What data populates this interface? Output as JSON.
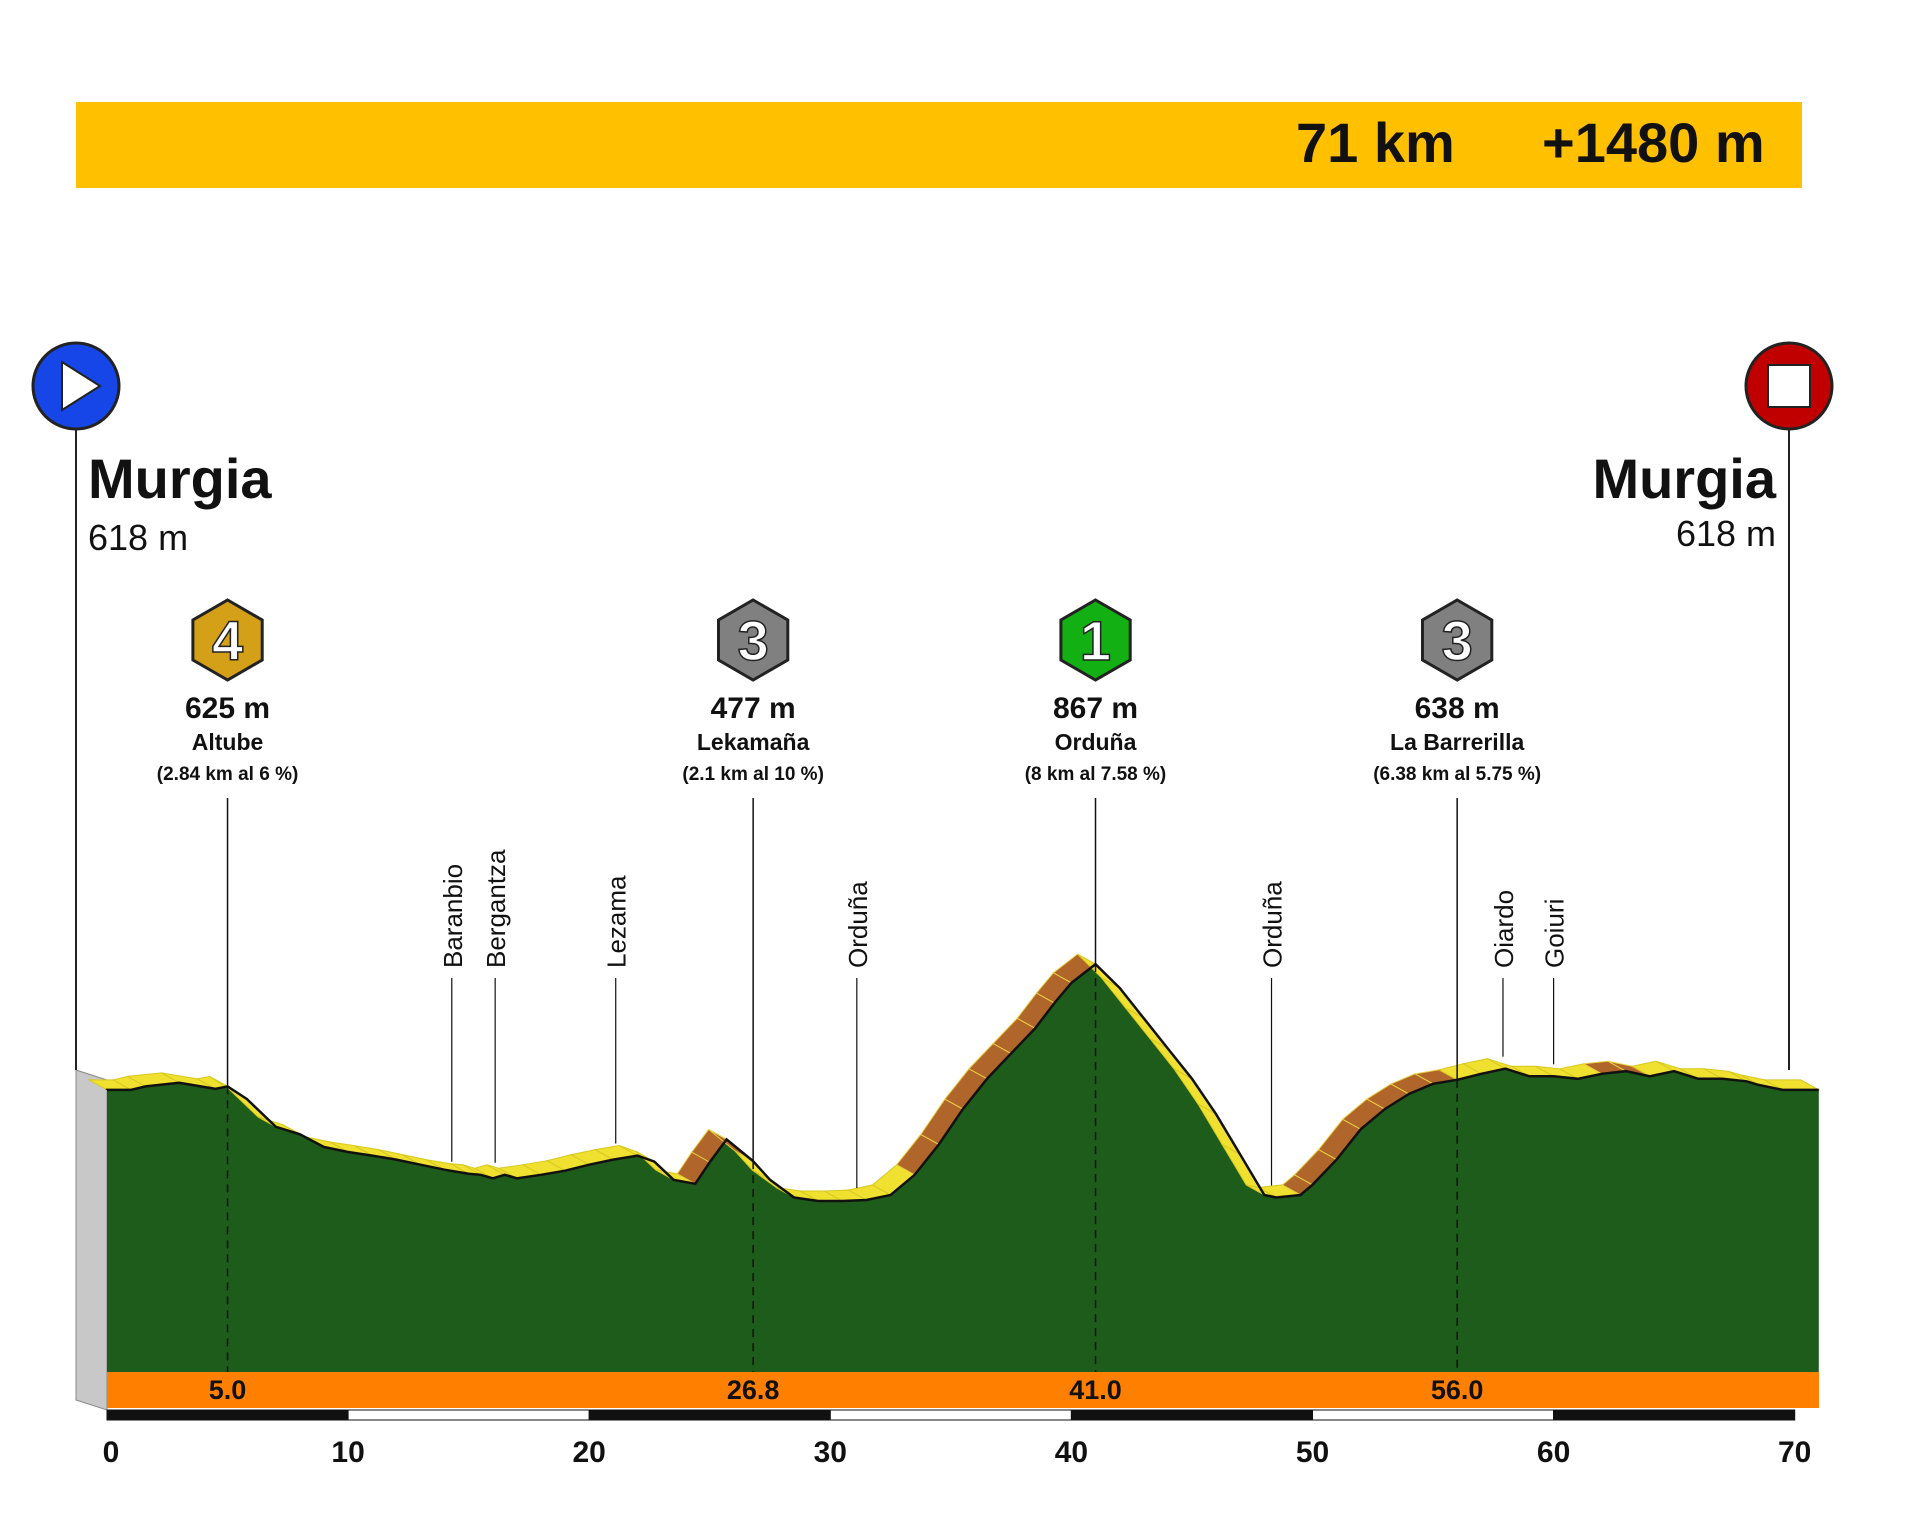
{
  "header": {
    "distance": "71 km",
    "elevation_gain": "+1480 m"
  },
  "chart_data": {
    "type": "area",
    "title": "",
    "xlabel": "",
    "ylabel": "",
    "xlim": [
      0,
      71
    ],
    "x_ticks": [
      "0",
      "10",
      "20",
      "30",
      "40",
      "50",
      "60",
      "70"
    ],
    "start": {
      "name": "Murgia",
      "elevation": "618 m",
      "icon": "play-icon",
      "color": "#1646E8"
    },
    "finish": {
      "name": "Murgia",
      "elevation": "618 m",
      "icon": "stop-icon",
      "color": "#C00000"
    },
    "series": [
      {
        "x": [
          0,
          1,
          1.6,
          3,
          4.5,
          5,
          5.8,
          7,
          8,
          9,
          10,
          11,
          12,
          13,
          14,
          15,
          15.5,
          16,
          16.5,
          17,
          18,
          19,
          20,
          21,
          22,
          22.7,
          23.5,
          24.4,
          25,
          25.7,
          26.8,
          27.5,
          28.5,
          29.5,
          30.5,
          31.5,
          32.5,
          33.5,
          34.5,
          35.5,
          36.5,
          37.5,
          38.5,
          39.3,
          40,
          41,
          42,
          43,
          44,
          45,
          46,
          47,
          48,
          48.5,
          49.5,
          50,
          51,
          52,
          53,
          54,
          55,
          56,
          57,
          58,
          59,
          60,
          61,
          62,
          63,
          64,
          65,
          66,
          67,
          68,
          68.5,
          69.5,
          71
        ],
        "y": [
          618,
          618,
          625,
          632,
          620,
          625,
          600,
          545,
          530,
          505,
          495,
          488,
          480,
          470,
          460,
          452,
          450,
          443,
          450,
          443,
          450,
          458,
          470,
          480,
          488,
          476,
          440,
          432,
          475,
          520,
          477,
          440,
          405,
          398,
          398,
          400,
          410,
          450,
          510,
          580,
          640,
          690,
          740,
          790,
          830,
          867,
          820,
          760,
          700,
          640,
          570,
          490,
          410,
          405,
          410,
          430,
          480,
          540,
          580,
          610,
          630,
          638,
          650,
          660,
          645,
          645,
          640,
          650,
          655,
          645,
          655,
          640,
          640,
          635,
          628,
          618,
          618
        ]
      }
    ],
    "climbs": [
      {
        "category": "4",
        "km": 5.0,
        "km_label": "5.0",
        "elevation": "625 m",
        "name": "Altube",
        "detail": "(2.84 km  al  6 %)",
        "color": "#D4A017"
      },
      {
        "category": "3",
        "km": 26.8,
        "km_label": "26.8",
        "elevation": "477 m",
        "name": "Lekamaña",
        "detail": "(2.1 km  al  10 %)",
        "color": "#808080"
      },
      {
        "category": "1",
        "km": 41.0,
        "km_label": "41.0",
        "elevation": "867 m",
        "name": "Orduña",
        "detail": "(8 km  al  7.58 %)",
        "color": "#13B013"
      },
      {
        "category": "3",
        "km": 56.0,
        "km_label": "56.0",
        "elevation": "638 m",
        "name": "La Barrerilla",
        "detail": "(6.38 km  al  5.75 %)",
        "color": "#808080"
      }
    ],
    "waypoints": [
      {
        "name": "Baranbio",
        "km": 14.3
      },
      {
        "name": "Bergantza",
        "km": 16.1
      },
      {
        "name": "Lezama",
        "km": 21.1
      },
      {
        "name": "Orduña",
        "km": 31.1
      },
      {
        "name": "Orduña",
        "km": 48.3
      },
      {
        "name": "Oiardo",
        "km": 57.9
      },
      {
        "name": "Goiuri",
        "km": 60.0
      }
    ],
    "colors": {
      "terrain": "#1D5C1B",
      "ridge": "#F0E030",
      "climb_ridge": "#B0652A",
      "km_band": "#FF7F00",
      "header": "#FFC000"
    }
  }
}
